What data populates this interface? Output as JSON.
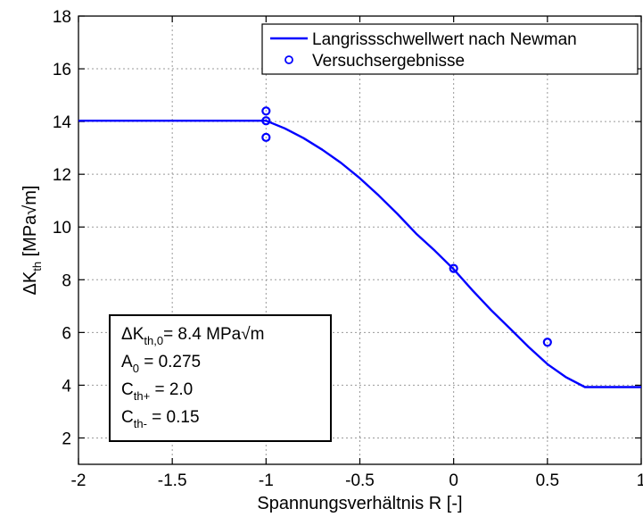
{
  "chart_data": {
    "type": "line",
    "xlabel": "Spannungsverhältnis R [-]",
    "ylabel": {
      "main": "ΔK",
      "sub": "th",
      "unit": " [MPa√m]"
    },
    "xlim": [
      -2,
      1
    ],
    "ylim": [
      1,
      18
    ],
    "x_ticks": [
      -2,
      -1.5,
      -1,
      -0.5,
      0,
      0.5,
      1
    ],
    "x_tick_labels": [
      "-2",
      "-1.5",
      "-1",
      "-0.5",
      "0",
      "0.5",
      "1"
    ],
    "y_ticks": [
      2,
      4,
      6,
      8,
      10,
      12,
      14,
      16,
      18
    ],
    "y_tick_labels": [
      "2",
      "4",
      "6",
      "8",
      "10",
      "12",
      "14",
      "16",
      "18"
    ],
    "grid": true,
    "legend_position": "top-right",
    "series": [
      {
        "name": "Langrissschwellwert nach Newman",
        "style": "line",
        "color": "#0000ff",
        "x": [
          -2,
          -1.5,
          -1.0,
          -0.9,
          -0.8,
          -0.7,
          -0.6,
          -0.5,
          -0.4,
          -0.3,
          -0.2,
          -0.1,
          0.0,
          0.1,
          0.2,
          0.3,
          0.4,
          0.5,
          0.6,
          0.7,
          1.0
        ],
        "y": [
          14.03,
          14.03,
          14.03,
          13.74,
          13.37,
          12.93,
          12.43,
          11.85,
          11.2,
          10.5,
          9.75,
          9.1,
          8.4,
          7.6,
          6.85,
          6.15,
          5.45,
          4.8,
          4.3,
          3.93,
          3.93
        ]
      },
      {
        "name": "Versuchsergebnisse",
        "style": "marker",
        "marker": "circle",
        "color": "#0000ff",
        "x": [
          -1,
          -1,
          -1,
          0,
          0.5
        ],
        "y": [
          14.4,
          14.03,
          13.4,
          8.43,
          5.63
        ]
      }
    ],
    "annotation_box": {
      "lines": [
        {
          "main": "ΔK",
          "sub": "th,0",
          "rest": "= 8.4 MPa√m"
        },
        {
          "main": "A",
          "sub": "0",
          "rest": " = 0.275"
        },
        {
          "main": "C",
          "sub": "th+",
          "rest": " = 2.0"
        },
        {
          "main": "C",
          "sub": "th-",
          "rest": " = 0.15"
        }
      ]
    }
  }
}
